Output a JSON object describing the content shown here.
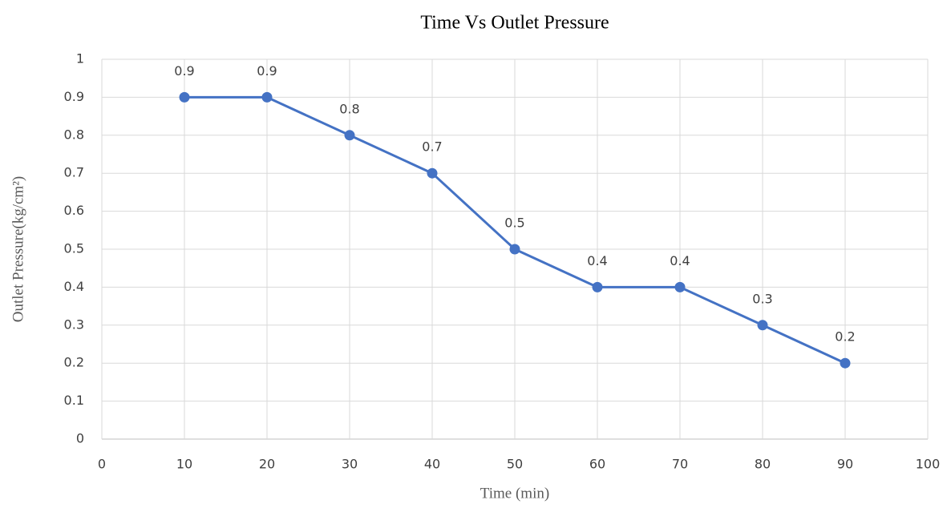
{
  "chart_data": {
    "type": "line",
    "title": "Time Vs Outlet Pressure",
    "x_label": "Time (min)",
    "y_label": "Outlet Pressure(kg/cm²)",
    "x": [
      10,
      20,
      30,
      40,
      50,
      60,
      70,
      80,
      90
    ],
    "series": [
      {
        "name": "Outlet Pressure",
        "color": "#4472c4",
        "values": [
          0.9,
          0.9,
          0.8,
          0.7,
          0.5,
          0.4,
          0.4,
          0.3,
          0.2
        ]
      }
    ],
    "xlim": [
      0,
      100
    ],
    "xticks": [
      0,
      10,
      20,
      30,
      40,
      50,
      60,
      70,
      80,
      90,
      100
    ],
    "ylim": [
      0,
      1
    ],
    "yticks": [
      0,
      0.1,
      0.2,
      0.3,
      0.4,
      0.5,
      0.6,
      0.7,
      0.8,
      0.9,
      1
    ],
    "grid": true,
    "data_labels": true
  }
}
